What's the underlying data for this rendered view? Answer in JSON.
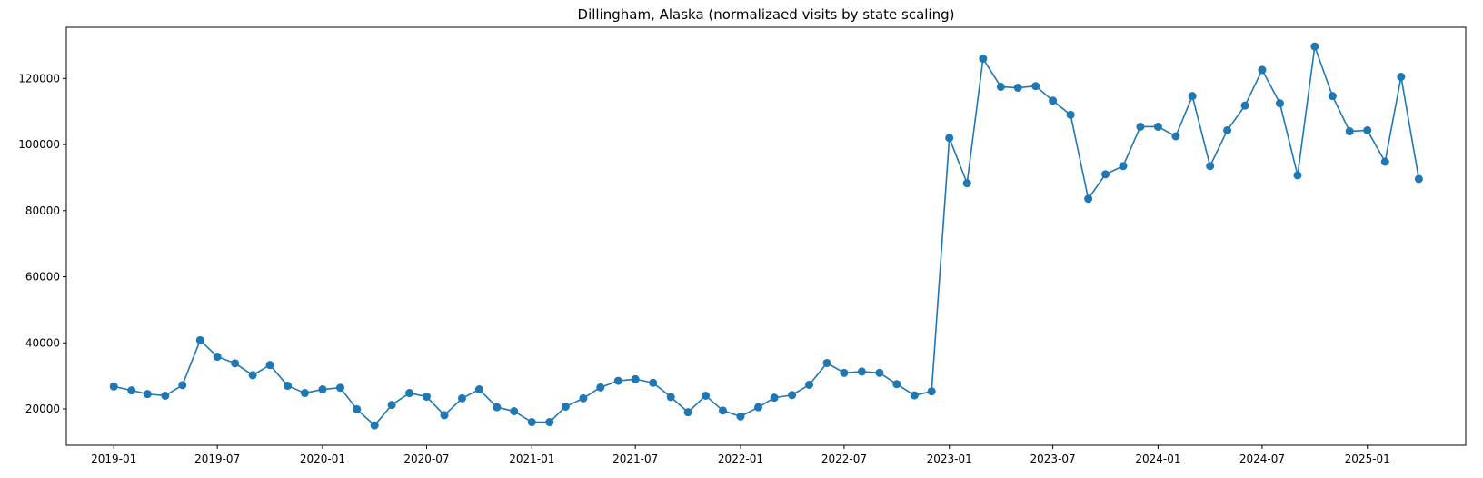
{
  "chart_data": {
    "type": "line",
    "title": "Dillingham, Alaska (normalizaed visits by state scaling)",
    "xlabel": "",
    "ylabel": "",
    "x_range": [
      "2018-10-10",
      "2025-06-22"
    ],
    "ylim": [
      9000,
      135500
    ],
    "xticks": [
      "2019-01",
      "2019-07",
      "2020-01",
      "2020-07",
      "2021-01",
      "2021-07",
      "2022-01",
      "2022-07",
      "2023-01",
      "2023-07",
      "2024-01",
      "2024-07",
      "2025-01"
    ],
    "yticks": [
      20000,
      40000,
      60000,
      80000,
      100000,
      120000
    ],
    "grid": false,
    "legend": "none",
    "marker": "circle",
    "color": "#1f77b4",
    "series": [
      {
        "x": [
          "2019-01",
          "2019-02",
          "2019-03",
          "2019-04",
          "2019-05",
          "2019-06",
          "2019-07",
          "2019-08",
          "2019-09",
          "2019-10",
          "2019-11",
          "2019-12",
          "2020-01",
          "2020-02",
          "2020-03",
          "2020-04",
          "2020-05",
          "2020-06",
          "2020-07",
          "2020-08",
          "2020-09",
          "2020-10",
          "2020-11",
          "2020-12",
          "2021-01",
          "2021-02",
          "2021-03",
          "2021-04",
          "2021-05",
          "2021-06",
          "2021-07",
          "2021-08",
          "2021-09",
          "2021-10",
          "2021-11",
          "2021-12",
          "2022-01",
          "2022-02",
          "2022-03",
          "2022-04",
          "2022-05",
          "2022-06",
          "2022-07",
          "2022-08",
          "2022-09",
          "2022-10",
          "2022-11",
          "2022-12",
          "2023-01",
          "2023-02",
          "2023-03",
          "2023-04",
          "2023-05",
          "2023-06",
          "2023-07",
          "2023-08",
          "2023-09",
          "2023-10",
          "2023-11",
          "2023-12",
          "2024-01",
          "2024-02",
          "2024-03",
          "2024-04",
          "2024-05",
          "2024-06",
          "2024-07",
          "2024-08",
          "2024-09",
          "2024-10",
          "2024-11",
          "2024-12",
          "2025-01",
          "2025-02",
          "2025-03",
          "2025-04"
        ],
        "y": [
          26800,
          25600,
          24500,
          24000,
          27200,
          40800,
          35800,
          33800,
          30200,
          33300,
          27000,
          24800,
          25900,
          26400,
          19900,
          15000,
          21200,
          24800,
          23700,
          18100,
          23200,
          25900,
          20500,
          19300,
          16000,
          16000,
          20700,
          23200,
          26500,
          28500,
          29000,
          27900,
          23600,
          19000,
          24000,
          19500,
          17700,
          20500,
          23400,
          24200,
          27300,
          33900,
          30900,
          31300,
          30900,
          27500,
          24100,
          25300,
          102000,
          88300,
          126000,
          117500,
          117200,
          117700,
          113300,
          109000,
          83600,
          91000,
          93500,
          105400,
          105400,
          102500,
          114700,
          93500,
          104300,
          111800,
          122600,
          112500,
          90700,
          129700,
          114700,
          104000,
          104300,
          94800,
          120500,
          89600
        ]
      }
    ]
  }
}
